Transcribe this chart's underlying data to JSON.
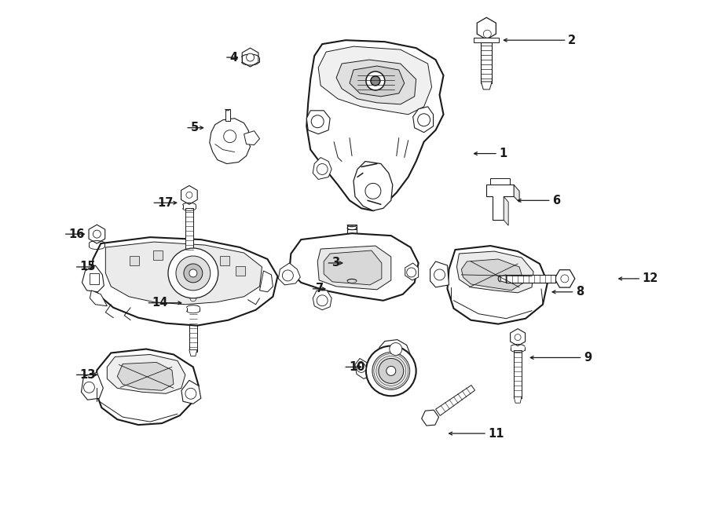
{
  "bg_color": "#ffffff",
  "line_color": "#1a1a1a",
  "figsize": [
    9.0,
    6.61
  ],
  "dpi": 100,
  "lw": 1.1,
  "lw_thick": 1.5,
  "label_fs": 10.5
}
